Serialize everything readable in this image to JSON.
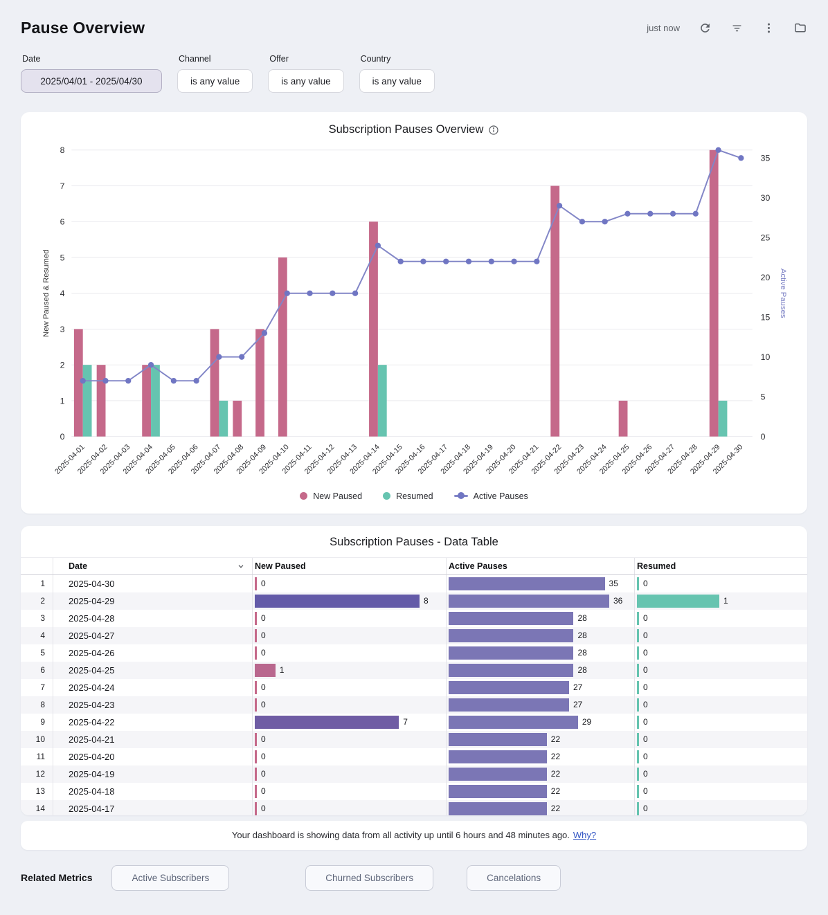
{
  "header": {
    "title": "Pause Overview",
    "updated": "just now"
  },
  "header_icons": [
    "refresh-icon",
    "filter-icon",
    "kebab-menu-icon",
    "folder-icon"
  ],
  "filters": [
    {
      "label": "Date",
      "value": "2025/04/01 - 2025/04/30",
      "style": "active"
    },
    {
      "label": "Channel",
      "value": "is any value",
      "style": "default"
    },
    {
      "label": "Offer",
      "value": "is any value",
      "style": "default"
    },
    {
      "label": "Country",
      "value": "is any value",
      "style": "default"
    }
  ],
  "chart": {
    "title": "Subscription Pauses Overview",
    "info_icon": "info-icon"
  },
  "chart_data": {
    "type": "bar+line",
    "title": "Subscription Pauses Overview",
    "categories": [
      "2025-04-01",
      "2025-04-02",
      "2025-04-03",
      "2025-04-04",
      "2025-04-05",
      "2025-04-06",
      "2025-04-07",
      "2025-04-08",
      "2025-04-09",
      "2025-04-10",
      "2025-04-11",
      "2025-04-12",
      "2025-04-13",
      "2025-04-14",
      "2025-04-15",
      "2025-04-16",
      "2025-04-17",
      "2025-04-18",
      "2025-04-19",
      "2025-04-20",
      "2025-04-21",
      "2025-04-22",
      "2025-04-23",
      "2025-04-24",
      "2025-04-25",
      "2025-04-26",
      "2025-04-27",
      "2025-04-28",
      "2025-04-29",
      "2025-04-30"
    ],
    "series": [
      {
        "name": "New Paused",
        "type": "bar",
        "axis": "left",
        "color": "#c5698a",
        "values": [
          3,
          2,
          0,
          2,
          0,
          0,
          3,
          1,
          3,
          5,
          0,
          0,
          0,
          6,
          0,
          0,
          0,
          0,
          0,
          0,
          0,
          7,
          0,
          0,
          1,
          0,
          0,
          0,
          8,
          0
        ]
      },
      {
        "name": "Resumed",
        "type": "bar",
        "axis": "left",
        "color": "#66c4b0",
        "values": [
          2,
          0,
          0,
          2,
          0,
          0,
          1,
          0,
          0,
          0,
          0,
          0,
          0,
          2,
          0,
          0,
          0,
          0,
          0,
          0,
          0,
          0,
          0,
          0,
          0,
          0,
          0,
          0,
          1,
          0
        ]
      },
      {
        "name": "Active Pauses",
        "type": "line",
        "axis": "right",
        "color": "#8286c7",
        "point_color": "#7076c3",
        "values": [
          7,
          7,
          7,
          9,
          7,
          7,
          10,
          10,
          13,
          18,
          18,
          18,
          18,
          24,
          22,
          22,
          22,
          22,
          22,
          22,
          22,
          29,
          27,
          27,
          28,
          28,
          28,
          28,
          36,
          35
        ]
      }
    ],
    "y_left": {
      "label": "New Paused & Resumed",
      "min": 0,
      "max": 8,
      "ticks": [
        0,
        1,
        2,
        3,
        4,
        5,
        6,
        7,
        8
      ]
    },
    "y_right": {
      "label": "Active Pauses",
      "min": 0,
      "max": 36,
      "ticks": [
        0,
        5,
        10,
        15,
        20,
        25,
        30,
        35
      ]
    },
    "grid": true,
    "legend_position": "bottom"
  },
  "table": {
    "title": "Subscription Pauses - Data Table",
    "columns": [
      "Date",
      "New Paused",
      "Active Pauses",
      "Resumed"
    ],
    "sort_column": "Date",
    "sort_icon": "sort-desc-icon",
    "rows": [
      {
        "n": 1,
        "date": "2025-04-30",
        "new_paused": 0,
        "active_pauses": 35,
        "resumed": 0
      },
      {
        "n": 2,
        "date": "2025-04-29",
        "new_paused": 8,
        "active_pauses": 36,
        "resumed": 1
      },
      {
        "n": 3,
        "date": "2025-04-28",
        "new_paused": 0,
        "active_pauses": 28,
        "resumed": 0
      },
      {
        "n": 4,
        "date": "2025-04-27",
        "new_paused": 0,
        "active_pauses": 28,
        "resumed": 0
      },
      {
        "n": 5,
        "date": "2025-04-26",
        "new_paused": 0,
        "active_pauses": 28,
        "resumed": 0
      },
      {
        "n": 6,
        "date": "2025-04-25",
        "new_paused": 1,
        "active_pauses": 28,
        "resumed": 0
      },
      {
        "n": 7,
        "date": "2025-04-24",
        "new_paused": 0,
        "active_pauses": 27,
        "resumed": 0
      },
      {
        "n": 8,
        "date": "2025-04-23",
        "new_paused": 0,
        "active_pauses": 27,
        "resumed": 0
      },
      {
        "n": 9,
        "date": "2025-04-22",
        "new_paused": 7,
        "active_pauses": 29,
        "resumed": 0
      },
      {
        "n": 10,
        "date": "2025-04-21",
        "new_paused": 0,
        "active_pauses": 22,
        "resumed": 0
      },
      {
        "n": 11,
        "date": "2025-04-20",
        "new_paused": 0,
        "active_pauses": 22,
        "resumed": 0
      },
      {
        "n": 12,
        "date": "2025-04-19",
        "new_paused": 0,
        "active_pauses": 22,
        "resumed": 0
      },
      {
        "n": 13,
        "date": "2025-04-18",
        "new_paused": 0,
        "active_pauses": 22,
        "resumed": 0
      },
      {
        "n": 14,
        "date": "2025-04-17",
        "new_paused": 0,
        "active_pauses": 22,
        "resumed": 0
      }
    ],
    "bar_scale_max": {
      "new_paused": 8,
      "active_pauses": 36,
      "resumed": 2
    },
    "bar_colors": {
      "new_paused_low": "#c5698a",
      "new_paused_high": "#635aa8",
      "active_pauses": "#7b76b5",
      "resumed": "#66c4b0"
    }
  },
  "footer": {
    "text": "Your dashboard is showing data from all activity up until 6 hours and 48 minutes ago.",
    "link": "Why?"
  },
  "related": {
    "label": "Related Metrics",
    "buttons": [
      "Active Subscribers",
      "Churned Subscribers",
      "Cancelations"
    ]
  }
}
